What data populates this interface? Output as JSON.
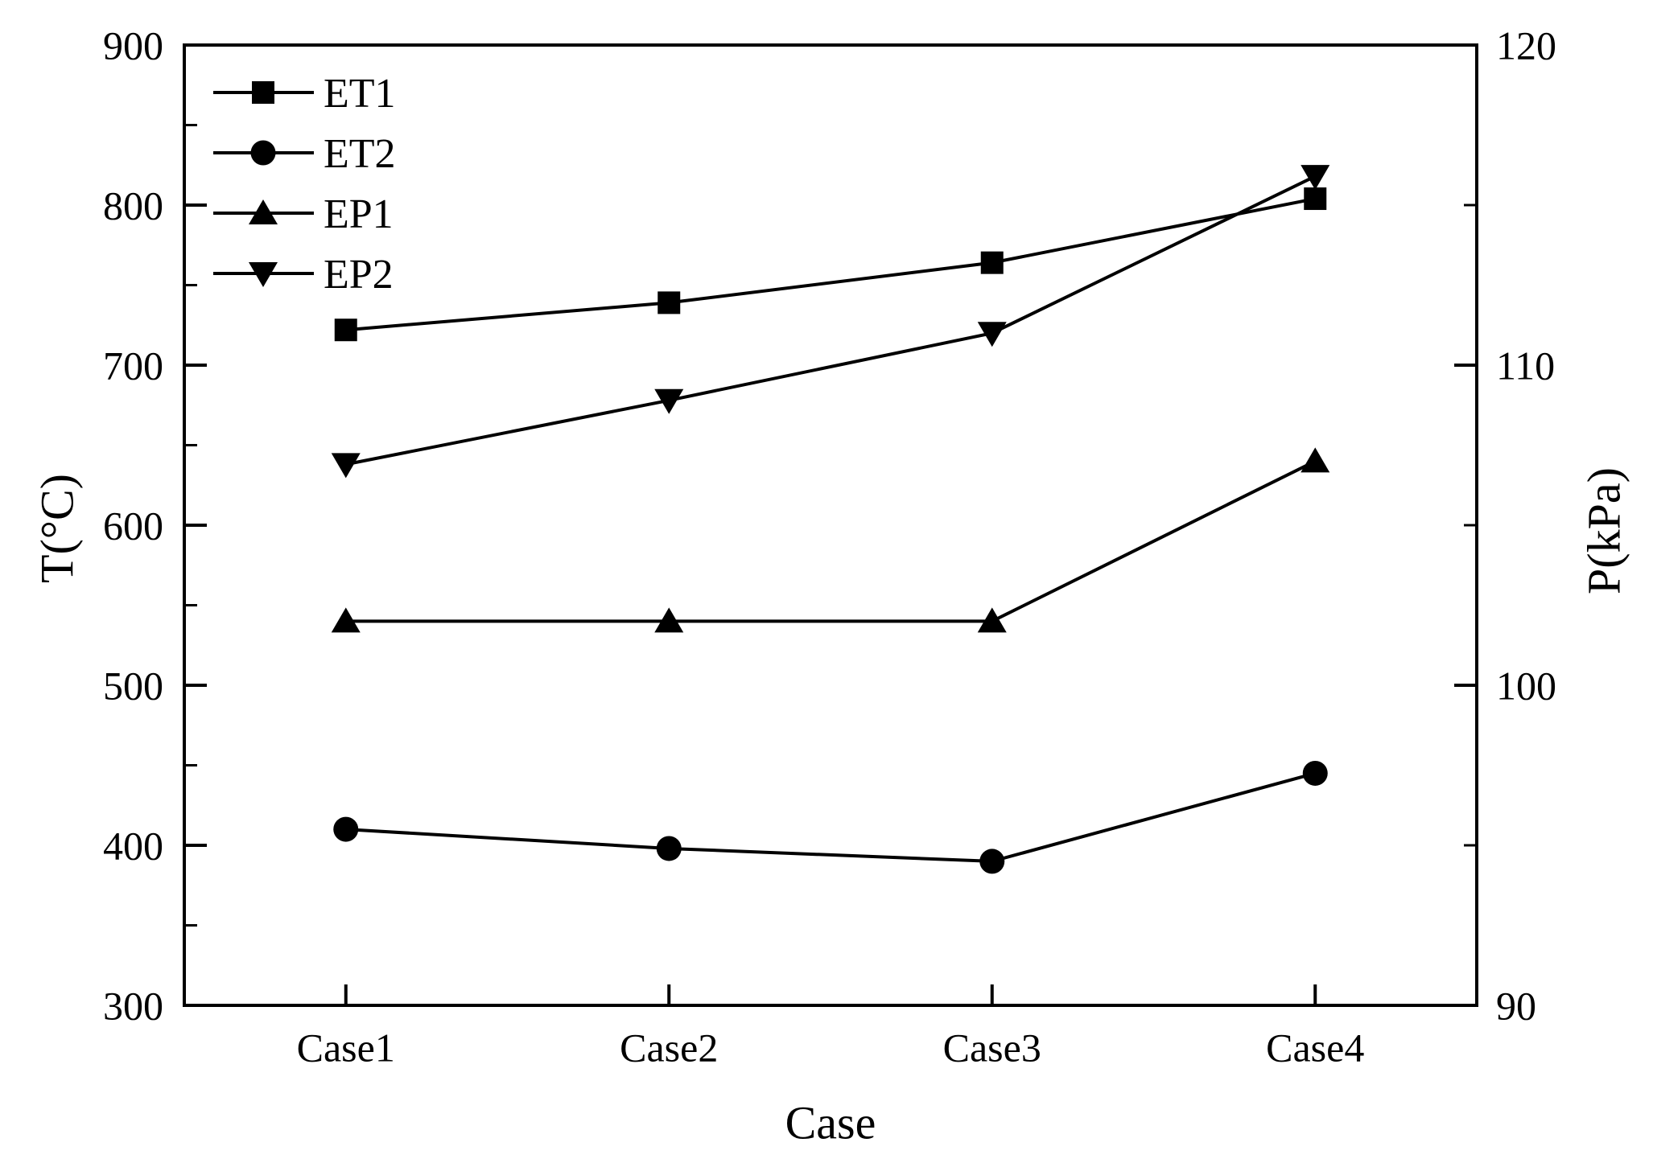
{
  "chart_data": {
    "type": "line",
    "title": "",
    "xlabel": "Case",
    "ylabel_left": "T(°C)",
    "ylabel_right": "P(kPa)",
    "categories": [
      "Case1",
      "Case2",
      "Case3",
      "Case4"
    ],
    "left_axis": {
      "min": 300,
      "max": 900,
      "major_ticks": [
        900,
        800,
        700,
        600,
        500,
        400,
        300
      ],
      "minor_ticks": [
        850,
        750,
        650,
        550,
        450,
        350
      ]
    },
    "right_axis": {
      "min": 90,
      "max": 120,
      "major_ticks": [
        120,
        110,
        100,
        90
      ],
      "minor_ticks": [
        115,
        105,
        95
      ]
    },
    "series": [
      {
        "name": "ET1",
        "axis": "left",
        "marker": "square",
        "values": [
          722,
          739,
          764,
          804
        ]
      },
      {
        "name": "ET2",
        "axis": "left",
        "marker": "circle",
        "values": [
          410,
          398,
          390,
          445
        ]
      },
      {
        "name": "EP1",
        "axis": "right",
        "marker": "triangle-up",
        "values": [
          102,
          102,
          102,
          107
        ]
      },
      {
        "name": "EP2",
        "axis": "right",
        "marker": "triangle-down",
        "values": [
          106.9,
          108.9,
          111,
          115.9
        ]
      }
    ],
    "legend": {
      "position": "top-left",
      "entries": [
        "ET1",
        "ET2",
        "EP1",
        "EP2"
      ]
    },
    "grid": false,
    "colors": {
      "line": "#000000",
      "background": "#ffffff",
      "text": "#000000"
    }
  }
}
